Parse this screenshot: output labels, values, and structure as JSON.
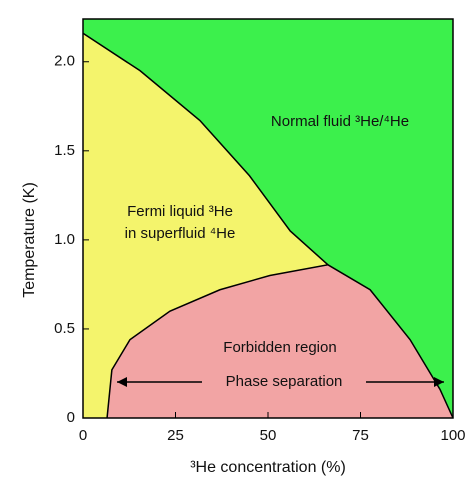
{
  "chart_data": {
    "type": "phase-diagram",
    "x_label": "³He concentration (%)",
    "y_label": "Temperature (K)",
    "xlim": [
      0,
      100
    ],
    "ylim": [
      0,
      2.24
    ],
    "xticks": [
      0,
      25,
      50,
      75,
      100
    ],
    "yticks": [
      0,
      0.5,
      {
        "value": 1,
        "label": "1.0"
      },
      1.5,
      {
        "value": 2,
        "label": "2.0"
      }
    ],
    "lambda_line": {
      "x": [
        0,
        15.4,
        31.6,
        45,
        56,
        66.2
      ],
      "y": [
        2.16,
        1.95,
        1.67,
        1.36,
        1.05,
        0.86
      ]
    },
    "phase_boundary": {
      "x": [
        6.5,
        7.8,
        12.7,
        23.5,
        37,
        50.5,
        66.2,
        77.6,
        88.4,
        96.5,
        100
      ],
      "y": [
        0,
        0.27,
        0.44,
        0.6,
        0.72,
        0.8,
        0.86,
        0.72,
        0.44,
        0.16,
        0
      ]
    },
    "region_colors": {
      "normal_fluid": "#3cf04c",
      "fermi_liquid": "#f4f46c",
      "forbidden": "#f2a4a4"
    },
    "annotations": [
      "Normal fluid ³He/⁴He",
      "Fermi liquid ³He",
      "in superfluid ⁴He",
      "Forbidden region",
      "Phase separation"
    ]
  }
}
